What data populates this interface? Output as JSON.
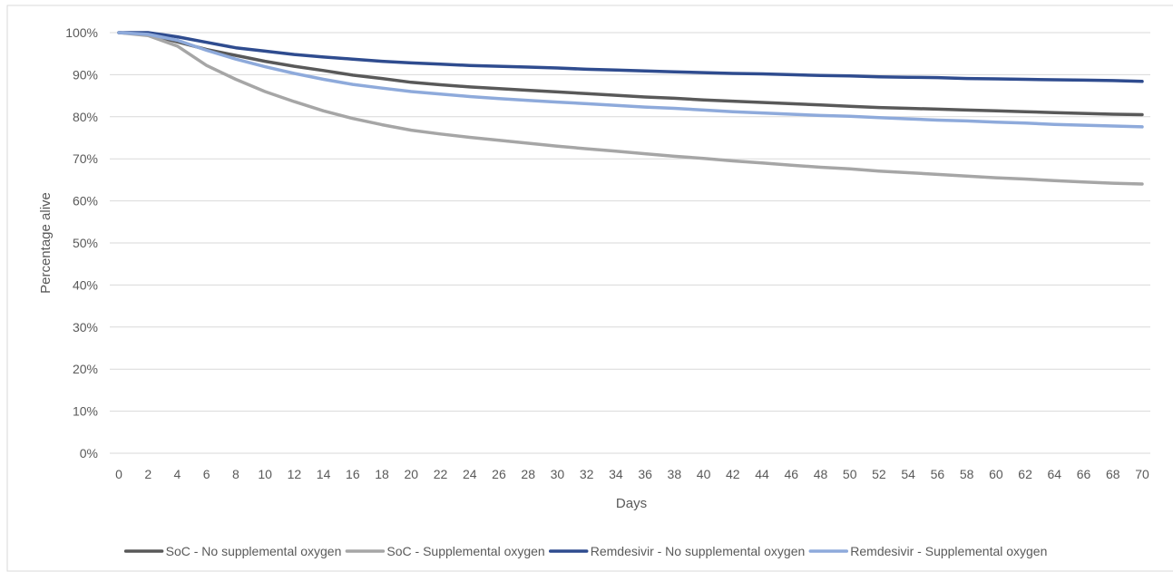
{
  "chart_data": {
    "type": "line",
    "title": "",
    "xlabel": "Days",
    "ylabel": "Percentage alive",
    "xlim": [
      0,
      70
    ],
    "ylim": [
      0,
      100
    ],
    "x_ticks": [
      0,
      2,
      4,
      6,
      8,
      10,
      12,
      14,
      16,
      18,
      20,
      22,
      24,
      26,
      28,
      30,
      32,
      34,
      36,
      38,
      40,
      42,
      44,
      46,
      48,
      50,
      52,
      54,
      56,
      58,
      60,
      62,
      64,
      66,
      68,
      70
    ],
    "y_ticks": [
      0,
      10,
      20,
      30,
      40,
      50,
      60,
      70,
      80,
      90,
      100
    ],
    "y_tick_labels": [
      "0%",
      "10%",
      "20%",
      "30%",
      "40%",
      "50%",
      "60%",
      "70%",
      "80%",
      "90%",
      "100%"
    ],
    "grid": "horizontal",
    "legend_position": "bottom",
    "x": [
      0,
      2,
      4,
      6,
      8,
      10,
      12,
      14,
      16,
      18,
      20,
      22,
      24,
      26,
      28,
      30,
      32,
      34,
      36,
      38,
      40,
      42,
      44,
      46,
      48,
      50,
      52,
      54,
      56,
      58,
      60,
      62,
      64,
      66,
      68,
      70
    ],
    "series": [
      {
        "name": "SoC - No supplemental oxygen",
        "color": "#595959",
        "values": [
          100,
          99.6,
          97.8,
          96,
          94.6,
          93.2,
          92,
          91,
          89.9,
          89.1,
          88.2,
          87.6,
          87.1,
          86.7,
          86.3,
          85.9,
          85.5,
          85.1,
          84.7,
          84.4,
          84,
          83.7,
          83.4,
          83.1,
          82.8,
          82.5,
          82.2,
          82,
          81.8,
          81.6,
          81.4,
          81.2,
          81,
          80.8,
          80.6,
          80.5
        ]
      },
      {
        "name": "SoC - Supplemental oxygen",
        "color": "#a6a6a6",
        "values": [
          100,
          99.3,
          96.8,
          92.2,
          88.9,
          86,
          83.6,
          81.4,
          79.6,
          78.1,
          76.8,
          75.9,
          75.1,
          74.4,
          73.7,
          73,
          72.4,
          71.8,
          71.2,
          70.6,
          70.1,
          69.5,
          69,
          68.5,
          68,
          67.6,
          67.1,
          66.7,
          66.3,
          65.9,
          65.5,
          65.2,
          64.8,
          64.5,
          64.2,
          64
        ]
      },
      {
        "name": "Remdesivir - No supplemental oxygen",
        "color": "#2f4c8f",
        "values": [
          100,
          100,
          99,
          97.7,
          96.4,
          95.6,
          94.8,
          94.2,
          93.7,
          93.2,
          92.8,
          92.5,
          92.2,
          92,
          91.8,
          91.6,
          91.3,
          91.1,
          90.9,
          90.7,
          90.5,
          90.3,
          90.2,
          90,
          89.8,
          89.7,
          89.5,
          89.4,
          89.3,
          89.1,
          89,
          88.9,
          88.8,
          88.7,
          88.6,
          88.4
        ]
      },
      {
        "name": "Remdesivir - Supplemental oxygen",
        "color": "#8eaadb",
        "values": [
          100,
          99.6,
          98.2,
          95.8,
          93.7,
          91.9,
          90.3,
          88.9,
          87.7,
          86.8,
          86,
          85.4,
          84.8,
          84.3,
          83.9,
          83.5,
          83.1,
          82.7,
          82.3,
          82,
          81.6,
          81.2,
          80.9,
          80.6,
          80.3,
          80.1,
          79.8,
          79.5,
          79.2,
          79,
          78.7,
          78.5,
          78.2,
          78,
          77.8,
          77.6
        ]
      }
    ]
  }
}
